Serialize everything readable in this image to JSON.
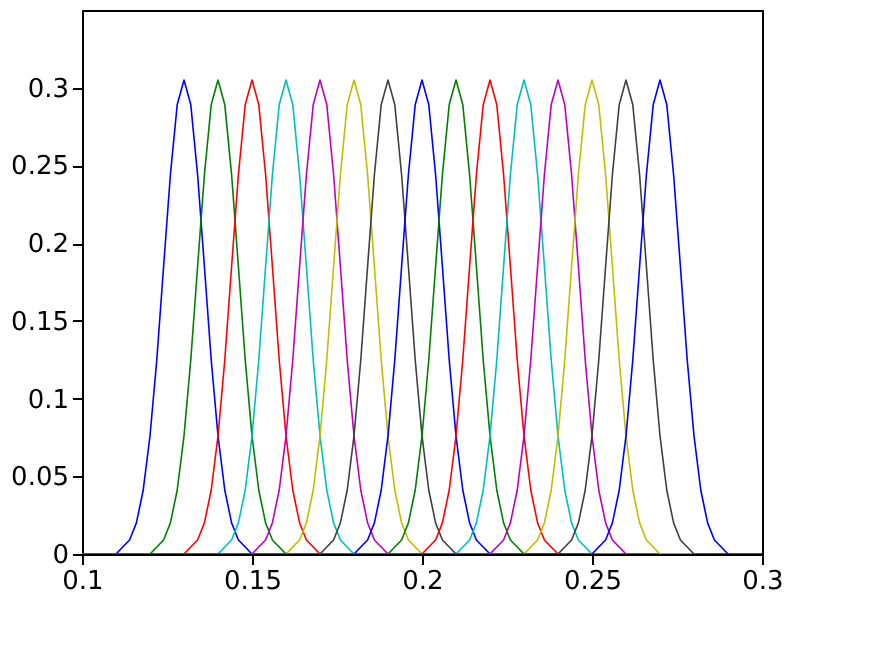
{
  "chart_data": {
    "type": "line",
    "xlim": [
      0.1,
      0.3
    ],
    "xticks": [
      0.1,
      0.15,
      0.2,
      0.25,
      0.3
    ],
    "ylim": [
      0,
      0.35
    ],
    "yticks": [
      0,
      0.05,
      0.1,
      0.15,
      0.2,
      0.25,
      0.3
    ],
    "grid": false,
    "legend": false,
    "marker": "none",
    "line_style": "solid",
    "series": [
      {
        "color": "#0000ff",
        "x": [
          0.1,
          0.11,
          0.114,
          0.116,
          0.118,
          0.12,
          0.122,
          0.124,
          0.126,
          0.128,
          0.13,
          0.132,
          0.134,
          0.136,
          0.138,
          0.14,
          0.142,
          0.144,
          0.146,
          0.15,
          0.3
        ],
        "values": [
          0,
          0,
          0.009,
          0.02,
          0.041,
          0.076,
          0.125,
          0.185,
          0.244,
          0.289,
          0.305,
          0.289,
          0.244,
          0.185,
          0.125,
          0.076,
          0.041,
          0.02,
          0.009,
          0,
          0
        ]
      },
      {
        "color": "#008000",
        "x": [
          0.1,
          0.12,
          0.124,
          0.126,
          0.128,
          0.13,
          0.132,
          0.134,
          0.136,
          0.138,
          0.14,
          0.142,
          0.144,
          0.146,
          0.148,
          0.15,
          0.152,
          0.154,
          0.156,
          0.16,
          0.3
        ],
        "values": [
          0,
          0,
          0.009,
          0.02,
          0.041,
          0.076,
          0.125,
          0.185,
          0.244,
          0.289,
          0.305,
          0.289,
          0.244,
          0.185,
          0.125,
          0.076,
          0.041,
          0.02,
          0.009,
          0,
          0
        ]
      },
      {
        "color": "#ff0000",
        "x": [
          0.1,
          0.13,
          0.134,
          0.136,
          0.138,
          0.14,
          0.142,
          0.144,
          0.146,
          0.148,
          0.15,
          0.152,
          0.154,
          0.156,
          0.158,
          0.16,
          0.162,
          0.164,
          0.166,
          0.17,
          0.3
        ],
        "values": [
          0,
          0,
          0.009,
          0.02,
          0.041,
          0.076,
          0.125,
          0.185,
          0.244,
          0.289,
          0.305,
          0.289,
          0.244,
          0.185,
          0.125,
          0.076,
          0.041,
          0.02,
          0.009,
          0,
          0
        ]
      },
      {
        "color": "#00bfbf",
        "x": [
          0.1,
          0.14,
          0.144,
          0.146,
          0.148,
          0.15,
          0.152,
          0.154,
          0.156,
          0.158,
          0.16,
          0.162,
          0.164,
          0.166,
          0.168,
          0.17,
          0.172,
          0.174,
          0.176,
          0.18,
          0.3
        ],
        "values": [
          0,
          0,
          0.009,
          0.02,
          0.041,
          0.076,
          0.125,
          0.185,
          0.244,
          0.289,
          0.305,
          0.289,
          0.244,
          0.185,
          0.125,
          0.076,
          0.041,
          0.02,
          0.009,
          0,
          0
        ]
      },
      {
        "color": "#bf00bf",
        "x": [
          0.1,
          0.15,
          0.154,
          0.156,
          0.158,
          0.16,
          0.162,
          0.164,
          0.166,
          0.168,
          0.17,
          0.172,
          0.174,
          0.176,
          0.178,
          0.18,
          0.182,
          0.184,
          0.186,
          0.19,
          0.3
        ],
        "values": [
          0,
          0,
          0.009,
          0.02,
          0.041,
          0.076,
          0.125,
          0.185,
          0.244,
          0.289,
          0.305,
          0.289,
          0.244,
          0.185,
          0.125,
          0.076,
          0.041,
          0.02,
          0.009,
          0,
          0
        ]
      },
      {
        "color": "#bfbf00",
        "x": [
          0.1,
          0.16,
          0.164,
          0.166,
          0.168,
          0.17,
          0.172,
          0.174,
          0.176,
          0.178,
          0.18,
          0.182,
          0.184,
          0.186,
          0.188,
          0.19,
          0.192,
          0.194,
          0.196,
          0.2,
          0.3
        ],
        "values": [
          0,
          0,
          0.009,
          0.02,
          0.041,
          0.076,
          0.125,
          0.185,
          0.244,
          0.289,
          0.305,
          0.289,
          0.244,
          0.185,
          0.125,
          0.076,
          0.041,
          0.02,
          0.009,
          0,
          0
        ]
      },
      {
        "color": "#404040",
        "x": [
          0.1,
          0.17,
          0.174,
          0.176,
          0.178,
          0.18,
          0.182,
          0.184,
          0.186,
          0.188,
          0.19,
          0.192,
          0.194,
          0.196,
          0.198,
          0.2,
          0.202,
          0.204,
          0.206,
          0.21,
          0.3
        ],
        "values": [
          0,
          0,
          0.009,
          0.02,
          0.041,
          0.076,
          0.125,
          0.185,
          0.244,
          0.289,
          0.305,
          0.289,
          0.244,
          0.185,
          0.125,
          0.076,
          0.041,
          0.02,
          0.009,
          0,
          0
        ]
      },
      {
        "color": "#0000ff",
        "x": [
          0.1,
          0.18,
          0.184,
          0.186,
          0.188,
          0.19,
          0.192,
          0.194,
          0.196,
          0.198,
          0.2,
          0.202,
          0.204,
          0.206,
          0.208,
          0.21,
          0.212,
          0.214,
          0.216,
          0.22,
          0.3
        ],
        "values": [
          0,
          0,
          0.009,
          0.02,
          0.041,
          0.076,
          0.125,
          0.185,
          0.244,
          0.289,
          0.305,
          0.289,
          0.244,
          0.185,
          0.125,
          0.076,
          0.041,
          0.02,
          0.009,
          0,
          0
        ]
      },
      {
        "color": "#008000",
        "x": [
          0.1,
          0.19,
          0.194,
          0.196,
          0.198,
          0.2,
          0.202,
          0.204,
          0.206,
          0.208,
          0.21,
          0.212,
          0.214,
          0.216,
          0.218,
          0.22,
          0.222,
          0.224,
          0.226,
          0.23,
          0.3
        ],
        "values": [
          0,
          0,
          0.009,
          0.02,
          0.041,
          0.076,
          0.125,
          0.185,
          0.244,
          0.289,
          0.305,
          0.289,
          0.244,
          0.185,
          0.125,
          0.076,
          0.041,
          0.02,
          0.009,
          0,
          0
        ]
      },
      {
        "color": "#ff0000",
        "x": [
          0.1,
          0.2,
          0.204,
          0.206,
          0.208,
          0.21,
          0.212,
          0.214,
          0.216,
          0.218,
          0.22,
          0.222,
          0.224,
          0.226,
          0.228,
          0.23,
          0.232,
          0.234,
          0.236,
          0.24,
          0.3
        ],
        "values": [
          0,
          0,
          0.009,
          0.02,
          0.041,
          0.076,
          0.125,
          0.185,
          0.244,
          0.289,
          0.305,
          0.289,
          0.244,
          0.185,
          0.125,
          0.076,
          0.041,
          0.02,
          0.009,
          0,
          0
        ]
      },
      {
        "color": "#00bfbf",
        "x": [
          0.1,
          0.21,
          0.214,
          0.216,
          0.218,
          0.22,
          0.222,
          0.224,
          0.226,
          0.228,
          0.23,
          0.232,
          0.234,
          0.236,
          0.238,
          0.24,
          0.242,
          0.244,
          0.246,
          0.25,
          0.3
        ],
        "values": [
          0,
          0,
          0.009,
          0.02,
          0.041,
          0.076,
          0.125,
          0.185,
          0.244,
          0.289,
          0.305,
          0.289,
          0.244,
          0.185,
          0.125,
          0.076,
          0.041,
          0.02,
          0.009,
          0,
          0
        ]
      },
      {
        "color": "#bf00bf",
        "x": [
          0.1,
          0.22,
          0.224,
          0.226,
          0.228,
          0.23,
          0.232,
          0.234,
          0.236,
          0.238,
          0.24,
          0.242,
          0.244,
          0.246,
          0.248,
          0.25,
          0.252,
          0.254,
          0.256,
          0.26,
          0.3
        ],
        "values": [
          0,
          0,
          0.009,
          0.02,
          0.041,
          0.076,
          0.125,
          0.185,
          0.244,
          0.289,
          0.305,
          0.289,
          0.244,
          0.185,
          0.125,
          0.076,
          0.041,
          0.02,
          0.009,
          0,
          0
        ]
      },
      {
        "color": "#bfbf00",
        "x": [
          0.1,
          0.23,
          0.234,
          0.236,
          0.238,
          0.24,
          0.242,
          0.244,
          0.246,
          0.248,
          0.25,
          0.252,
          0.254,
          0.256,
          0.258,
          0.26,
          0.262,
          0.264,
          0.266,
          0.27,
          0.3
        ],
        "values": [
          0,
          0,
          0.009,
          0.02,
          0.041,
          0.076,
          0.125,
          0.185,
          0.244,
          0.289,
          0.305,
          0.289,
          0.244,
          0.185,
          0.125,
          0.076,
          0.041,
          0.02,
          0.009,
          0,
          0
        ]
      },
      {
        "color": "#404040",
        "x": [
          0.1,
          0.24,
          0.244,
          0.246,
          0.248,
          0.25,
          0.252,
          0.254,
          0.256,
          0.258,
          0.26,
          0.262,
          0.264,
          0.266,
          0.268,
          0.27,
          0.272,
          0.274,
          0.276,
          0.28,
          0.3
        ],
        "values": [
          0,
          0,
          0.009,
          0.02,
          0.041,
          0.076,
          0.125,
          0.185,
          0.244,
          0.289,
          0.305,
          0.289,
          0.244,
          0.185,
          0.125,
          0.076,
          0.041,
          0.02,
          0.009,
          0,
          0
        ]
      },
      {
        "color": "#0000ff",
        "x": [
          0.25,
          0.254,
          0.256,
          0.258,
          0.26,
          0.262,
          0.264,
          0.266,
          0.268,
          0.27,
          0.272,
          0.274,
          0.276,
          0.278,
          0.28,
          0.282,
          0.284,
          0.286,
          0.29
        ],
        "values": [
          0,
          0.009,
          0.02,
          0.041,
          0.076,
          0.125,
          0.185,
          0.244,
          0.289,
          0.305,
          0.289,
          0.244,
          0.185,
          0.125,
          0.076,
          0.041,
          0.02,
          0.009,
          0
        ]
      }
    ]
  }
}
